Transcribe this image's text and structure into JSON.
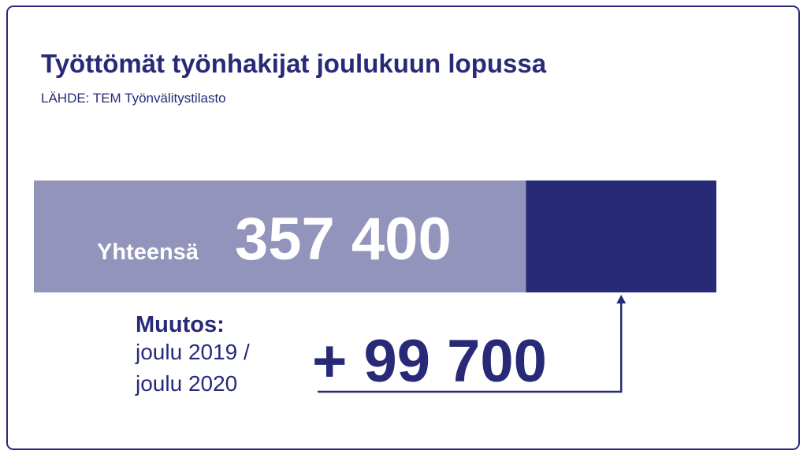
{
  "chart_data": {
    "type": "bar",
    "title": "Työttömät työnhakijat joulukuun lopussa",
    "subtitle": "LÄHDE: TEM Työnvälitystilasto",
    "total_label": "Yhteensä",
    "total": 357400,
    "total_value_label": "357 400",
    "total_color": "#9394bb",
    "change_label": "Muutos:",
    "change_period": [
      "joulu 2019 /",
      "joulu 2020"
    ],
    "change": 99700,
    "change_value_label": "+ 99 700",
    "change_color": "#282a78"
  }
}
